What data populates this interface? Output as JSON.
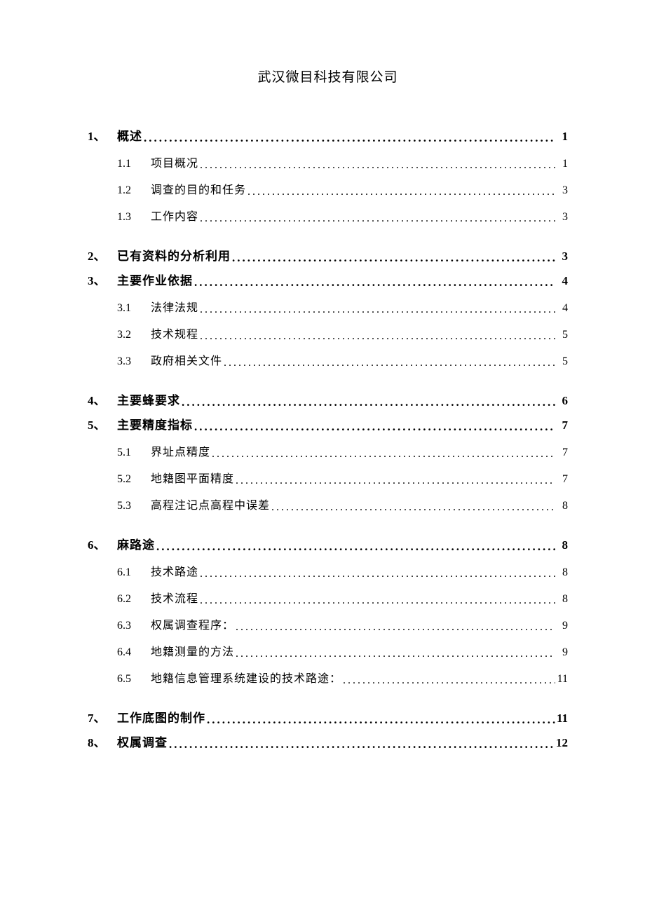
{
  "document": {
    "title": "武汉微目科技有限公司",
    "text_color": "#000000",
    "background_color": "#ffffff",
    "title_fontsize": 19,
    "l1_fontsize": 17,
    "l2_fontsize": 16
  },
  "toc": [
    {
      "level": 1,
      "num": "1、",
      "label": "概述",
      "page": "1"
    },
    {
      "level": 2,
      "num": "1.1",
      "label": "项目概况",
      "page": "1"
    },
    {
      "level": 2,
      "num": "1.2",
      "label": "调查的目的和任务",
      "page": "3"
    },
    {
      "level": 2,
      "num": "1.3",
      "label": "工作内容",
      "page": "3"
    },
    {
      "level": 1,
      "num": "2、",
      "label": "已有资料的分析利用",
      "page": "3"
    },
    {
      "level": 1,
      "num": "3、",
      "label": "主要作业依据",
      "page": "4"
    },
    {
      "level": 2,
      "num": "3.1",
      "label": "法律法规",
      "page": "4"
    },
    {
      "level": 2,
      "num": "3.2",
      "label": "技术规程",
      "page": "5"
    },
    {
      "level": 2,
      "num": "3.3",
      "label": "政府相关文件",
      "page": "5"
    },
    {
      "level": 1,
      "num": "4、",
      "label": "主要蜂要求",
      "page": "6"
    },
    {
      "level": 1,
      "num": "5、",
      "label": "主要精度指标",
      "page": "7"
    },
    {
      "level": 2,
      "num": "5.1",
      "label": "界址点精度",
      "page": "7"
    },
    {
      "level": 2,
      "num": "5.2",
      "label": "地籍图平面精度",
      "page": "7"
    },
    {
      "level": 2,
      "num": "5.3",
      "label": "高程注记点高程中误差",
      "page": "8"
    },
    {
      "level": 1,
      "num": "6、",
      "label": "麻路途",
      "page": "8"
    },
    {
      "level": 2,
      "num": "6.1",
      "label": "技术路途",
      "page": "8"
    },
    {
      "level": 2,
      "num": "6.2",
      "label": "技术流程",
      "page": "8"
    },
    {
      "level": 2,
      "num": "6.3",
      "label": "权属调查程序：",
      "page": "9"
    },
    {
      "level": 2,
      "num": "6.4",
      "label": "地籍测量的方法",
      "page": "9"
    },
    {
      "level": 2,
      "num": "6.5",
      "label": "地籍信息管理系统建设的技术路途：",
      "page": "11"
    },
    {
      "level": 1,
      "num": "7、",
      "label": "工作底图的制作",
      "page": "11"
    },
    {
      "level": 1,
      "num": "8、",
      "label": "权属调查",
      "page": "12"
    }
  ]
}
